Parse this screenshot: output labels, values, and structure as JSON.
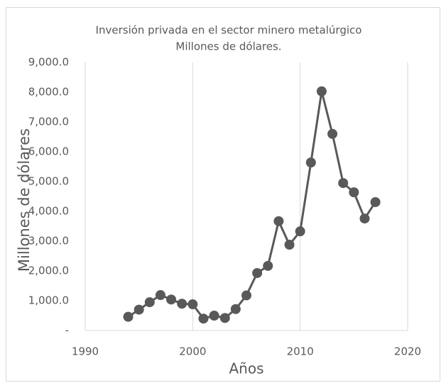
{
  "chart_data": {
    "type": "line",
    "title": [
      "Inversión privada en el sector minero metalúrgico",
      "Millones de dólares."
    ],
    "x_label": "Años",
    "y_label": "Millones de dólares",
    "x": [
      1994,
      1995,
      1996,
      1997,
      1998,
      1999,
      2000,
      2001,
      2002,
      2003,
      2004,
      2005,
      2006,
      2007,
      2008,
      2009,
      2010,
      2011,
      2012,
      2013,
      2014,
      2015,
      2016,
      2017
    ],
    "series": [
      {
        "name": "Inversión privada",
        "color": "#595959",
        "values": [
          460,
          700,
          950,
          1190,
          1040,
          900,
          880,
          400,
          500,
          420,
          720,
          1180,
          1930,
          2170,
          3670,
          2880,
          3330,
          5640,
          8030,
          6600,
          4950,
          4640,
          3760,
          4310
        ]
      }
    ],
    "xlim": [
      1990,
      2020
    ],
    "xticks": [
      1990,
      2000,
      2010,
      2020
    ],
    "ylim": [
      0,
      9000
    ],
    "yticks": [
      {
        "value": 0,
        "label": "-"
      },
      {
        "value": 1000,
        "label": "1,000.0"
      },
      {
        "value": 2000,
        "label": "2,000.0"
      },
      {
        "value": 3000,
        "label": "3,000.0"
      },
      {
        "value": 4000,
        "label": "4,000.0"
      },
      {
        "value": 5000,
        "label": "5,000.0"
      },
      {
        "value": 6000,
        "label": "6,000.0"
      },
      {
        "value": 7000,
        "label": "7,000.0"
      },
      {
        "value": 8000,
        "label": "8,000.0"
      },
      {
        "value": 9000,
        "label": "9,000.0"
      }
    ],
    "grid": "x"
  }
}
